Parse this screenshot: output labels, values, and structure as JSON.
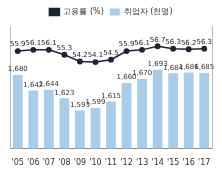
{
  "chart_data": {
    "type": "bar",
    "categories": [
      "'05",
      "'06",
      "'07",
      "'08",
      "'09",
      "'10",
      "'11",
      "'12",
      "'13",
      "'14",
      "'15",
      "'16",
      "'17"
    ],
    "series": [
      {
        "name": "취업자 (천명)",
        "type": "bar",
        "color": "#a9cce8",
        "values": [
          1680,
          1642,
          1644,
          1623,
          1593,
          1599,
          1615,
          1660,
          1670,
          1693,
          1684,
          1686,
          1685
        ],
        "value_labels": [
          "1,680",
          "1,642",
          "1,644",
          "1,623",
          "1,593",
          "1,599",
          "1,615",
          "1,660",
          "1,670",
          "1,693",
          "1,684",
          "1,686",
          "1,685"
        ]
      },
      {
        "name": "고용률 (%)",
        "type": "line",
        "axis": "y2",
        "color": "#1c2333",
        "marker": "circle",
        "values": [
          55.9,
          56.1,
          56.1,
          55.3,
          54.2,
          54.1,
          54.5,
          55.9,
          56.1,
          56.7,
          56.3,
          56.2,
          56.3
        ]
      }
    ],
    "ylim": [
      1500,
      1800
    ],
    "y2lim": [
      40,
      60
    ],
    "data_labels": true,
    "legend": "top",
    "grid": false,
    "tick_labels": "x"
  }
}
